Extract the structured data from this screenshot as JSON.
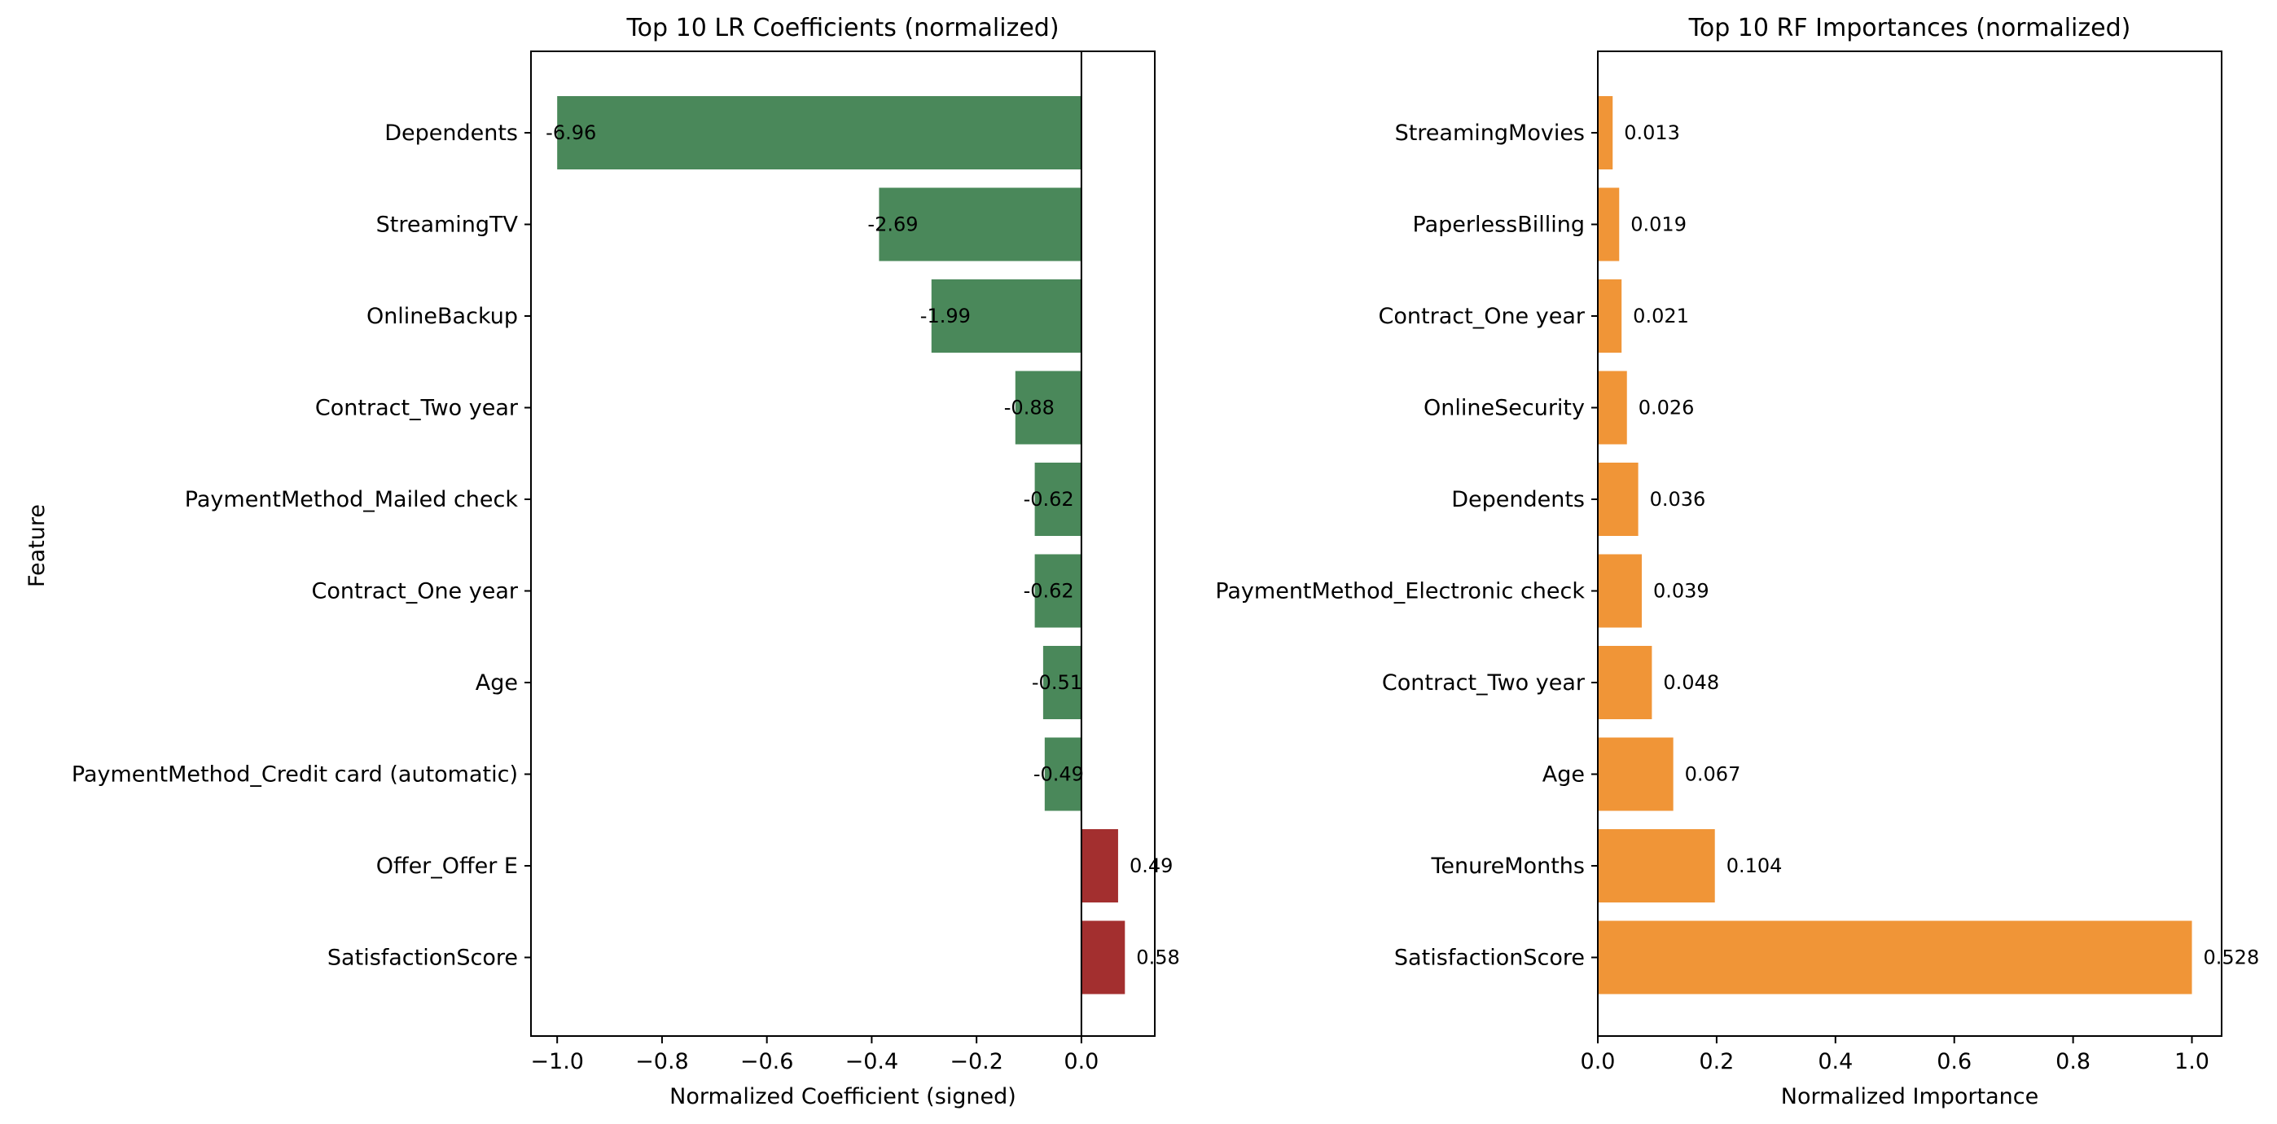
{
  "chart_data": [
    {
      "type": "bar",
      "orientation": "horizontal",
      "title": "Top 10 LR Coefficients (normalized)",
      "xlabel": "Normalized Coefficient (signed)",
      "ylabel": "Feature",
      "xlim": [
        -1.05,
        0.14
      ],
      "xticks": [
        -1.0,
        -0.8,
        -0.6,
        -0.4,
        -0.2,
        0.0
      ],
      "xtick_labels": [
        "−1.0",
        "−0.8",
        "−0.6",
        "−0.4",
        "−0.2",
        "0.0"
      ],
      "grid": false,
      "colors": {
        "negative": "#4a885a",
        "positive": "#a32f2f"
      },
      "categories": [
        "Dependents",
        "StreamingTV",
        "OnlineBackup",
        "Contract_Two year",
        "PaymentMethod_Mailed check",
        "Contract_One year",
        "Age",
        "PaymentMethod_Credit card (automatic)",
        "Offer_Offer E",
        "SatisfactionScore"
      ],
      "values": [
        -1.0,
        -0.386,
        -0.286,
        -0.126,
        -0.089,
        -0.089,
        -0.073,
        -0.07,
        0.07,
        0.083
      ],
      "labels": [
        "-6.96",
        "-2.69",
        "-1.99",
        "-0.88",
        "-0.62",
        "-0.62",
        "-0.51",
        "-0.49",
        "0.49",
        "0.58"
      ]
    },
    {
      "type": "bar",
      "orientation": "horizontal",
      "title": "Top 10 RF Importances (normalized)",
      "xlabel": "Normalized Importance",
      "ylabel": "",
      "xlim": [
        0,
        1.05
      ],
      "xticks": [
        0.0,
        0.2,
        0.4,
        0.6,
        0.8,
        1.0
      ],
      "xtick_labels": [
        "0.0",
        "0.2",
        "0.4",
        "0.6",
        "0.8",
        "1.0"
      ],
      "grid": false,
      "colors": {
        "bar": "#f09537"
      },
      "categories": [
        "StreamingMovies",
        "PaperlessBilling",
        "Contract_One year",
        "OnlineSecurity",
        "Dependents",
        "PaymentMethod_Electronic check",
        "Contract_Two year",
        "Age",
        "TenureMonths",
        "SatisfactionScore"
      ],
      "values": [
        0.025,
        0.036,
        0.04,
        0.049,
        0.068,
        0.074,
        0.091,
        0.127,
        0.197,
        1.0
      ],
      "labels": [
        "0.013",
        "0.019",
        "0.021",
        "0.026",
        "0.036",
        "0.039",
        "0.048",
        "0.067",
        "0.104",
        "0.528"
      ]
    }
  ]
}
